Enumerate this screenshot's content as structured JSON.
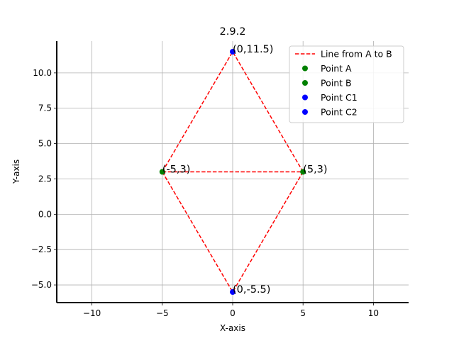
{
  "chart_data": {
    "type": "line",
    "title": "2.9.2",
    "xlabel": "X-axis",
    "ylabel": "Y-axis",
    "xlim": [
      -12.5,
      12.5
    ],
    "ylim": [
      -6.25,
      12.25
    ],
    "grid": true,
    "legend_position": "top-right",
    "x_ticks": [
      {
        "value": -10,
        "label": "−10"
      },
      {
        "value": -5,
        "label": "−5"
      },
      {
        "value": 0,
        "label": "0"
      },
      {
        "value": 5,
        "label": "5"
      },
      {
        "value": 10,
        "label": "10"
      }
    ],
    "y_ticks": [
      {
        "value": -5.0,
        "label": "−5.0"
      },
      {
        "value": -2.5,
        "label": "−2.5"
      },
      {
        "value": 0.0,
        "label": "0.0"
      },
      {
        "value": 2.5,
        "label": "2.5"
      },
      {
        "value": 5.0,
        "label": "5.0"
      },
      {
        "value": 7.5,
        "label": "7.5"
      },
      {
        "value": 10.0,
        "label": "10.0"
      }
    ],
    "lines": [
      {
        "label": "Line from A to B",
        "color": "#ff0000",
        "style": "dashed",
        "from": [
          -5,
          3
        ],
        "to": [
          5,
          3
        ],
        "in_legend": true
      },
      {
        "label": "",
        "color": "#ff0000",
        "style": "dashed",
        "from": [
          -5,
          3
        ],
        "to": [
          0,
          11.5
        ],
        "in_legend": false
      },
      {
        "label": "",
        "color": "#ff0000",
        "style": "dashed",
        "from": [
          5,
          3
        ],
        "to": [
          0,
          11.5
        ],
        "in_legend": false
      },
      {
        "label": "",
        "color": "#ff0000",
        "style": "dashed",
        "from": [
          -5,
          3
        ],
        "to": [
          0,
          -5.5
        ],
        "in_legend": false
      },
      {
        "label": "",
        "color": "#ff0000",
        "style": "dashed",
        "from": [
          5,
          3
        ],
        "to": [
          0,
          -5.5
        ],
        "in_legend": false
      }
    ],
    "points": [
      {
        "name": "Point A",
        "x": -5,
        "y": 3,
        "color": "#008000",
        "annotation": "(-5,3)"
      },
      {
        "name": "Point B",
        "x": 5,
        "y": 3,
        "color": "#008000",
        "annotation": "(5,3)"
      },
      {
        "name": "Point C1",
        "x": 0,
        "y": 11.5,
        "color": "#0000ff",
        "annotation": "(0,11.5)"
      },
      {
        "name": "Point C2",
        "x": 0,
        "y": -5.5,
        "color": "#0000ff",
        "annotation": "(0,-5.5)"
      }
    ],
    "legend": [
      {
        "label": "Line from A to B",
        "kind": "line",
        "color": "#ff0000"
      },
      {
        "label": "Point A",
        "kind": "marker",
        "color": "#008000"
      },
      {
        "label": "Point B",
        "kind": "marker",
        "color": "#008000"
      },
      {
        "label": "Point C1",
        "kind": "marker",
        "color": "#0000ff"
      },
      {
        "label": "Point C2",
        "kind": "marker",
        "color": "#0000ff"
      }
    ]
  }
}
